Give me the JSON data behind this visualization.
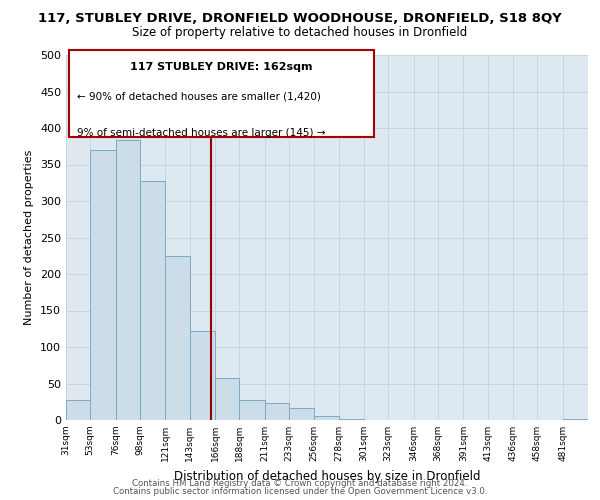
{
  "title_line1": "117, STUBLEY DRIVE, DRONFIELD WOODHOUSE, DRONFIELD, S18 8QY",
  "title_line2": "Size of property relative to detached houses in Dronfield",
  "xlabel": "Distribution of detached houses by size in Dronfield",
  "ylabel": "Number of detached properties",
  "bar_color": "#ccdce8",
  "bar_edge_color": "#7aaac8",
  "background_color": "#ffffff",
  "grid_color": "#c8d4e0",
  "vline_color": "#990000",
  "vline_x": 162,
  "annotation_text_line1": "117 STUBLEY DRIVE: 162sqm",
  "annotation_text_line2": "← 90% of detached houses are smaller (1,420)",
  "annotation_text_line3": "9% of semi-detached houses are larger (145) →",
  "annotation_box_edge": "#aa0000",
  "footer_line1": "Contains HM Land Registry data © Crown copyright and database right 2024.",
  "footer_line2": "Contains public sector information licensed under the Open Government Licence v3.0.",
  "bin_labels": [
    "31sqm",
    "53sqm",
    "76sqm",
    "98sqm",
    "121sqm",
    "143sqm",
    "166sqm",
    "188sqm",
    "211sqm",
    "233sqm",
    "256sqm",
    "278sqm",
    "301sqm",
    "323sqm",
    "346sqm",
    "368sqm",
    "391sqm",
    "413sqm",
    "436sqm",
    "458sqm",
    "481sqm"
  ],
  "bin_edges": [
    31,
    53,
    76,
    98,
    121,
    143,
    166,
    188,
    211,
    233,
    256,
    278,
    301,
    323,
    346,
    368,
    391,
    413,
    436,
    458,
    481
  ],
  "bar_heights": [
    28,
    370,
    383,
    327,
    225,
    122,
    58,
    27,
    23,
    17,
    6,
    1,
    0,
    0,
    0,
    0,
    0,
    0,
    0,
    0,
    2
  ],
  "ylim": [
    0,
    500
  ],
  "yticks": [
    0,
    50,
    100,
    150,
    200,
    250,
    300,
    350,
    400,
    450,
    500
  ],
  "xlim_min": 31,
  "xlim_max": 504
}
